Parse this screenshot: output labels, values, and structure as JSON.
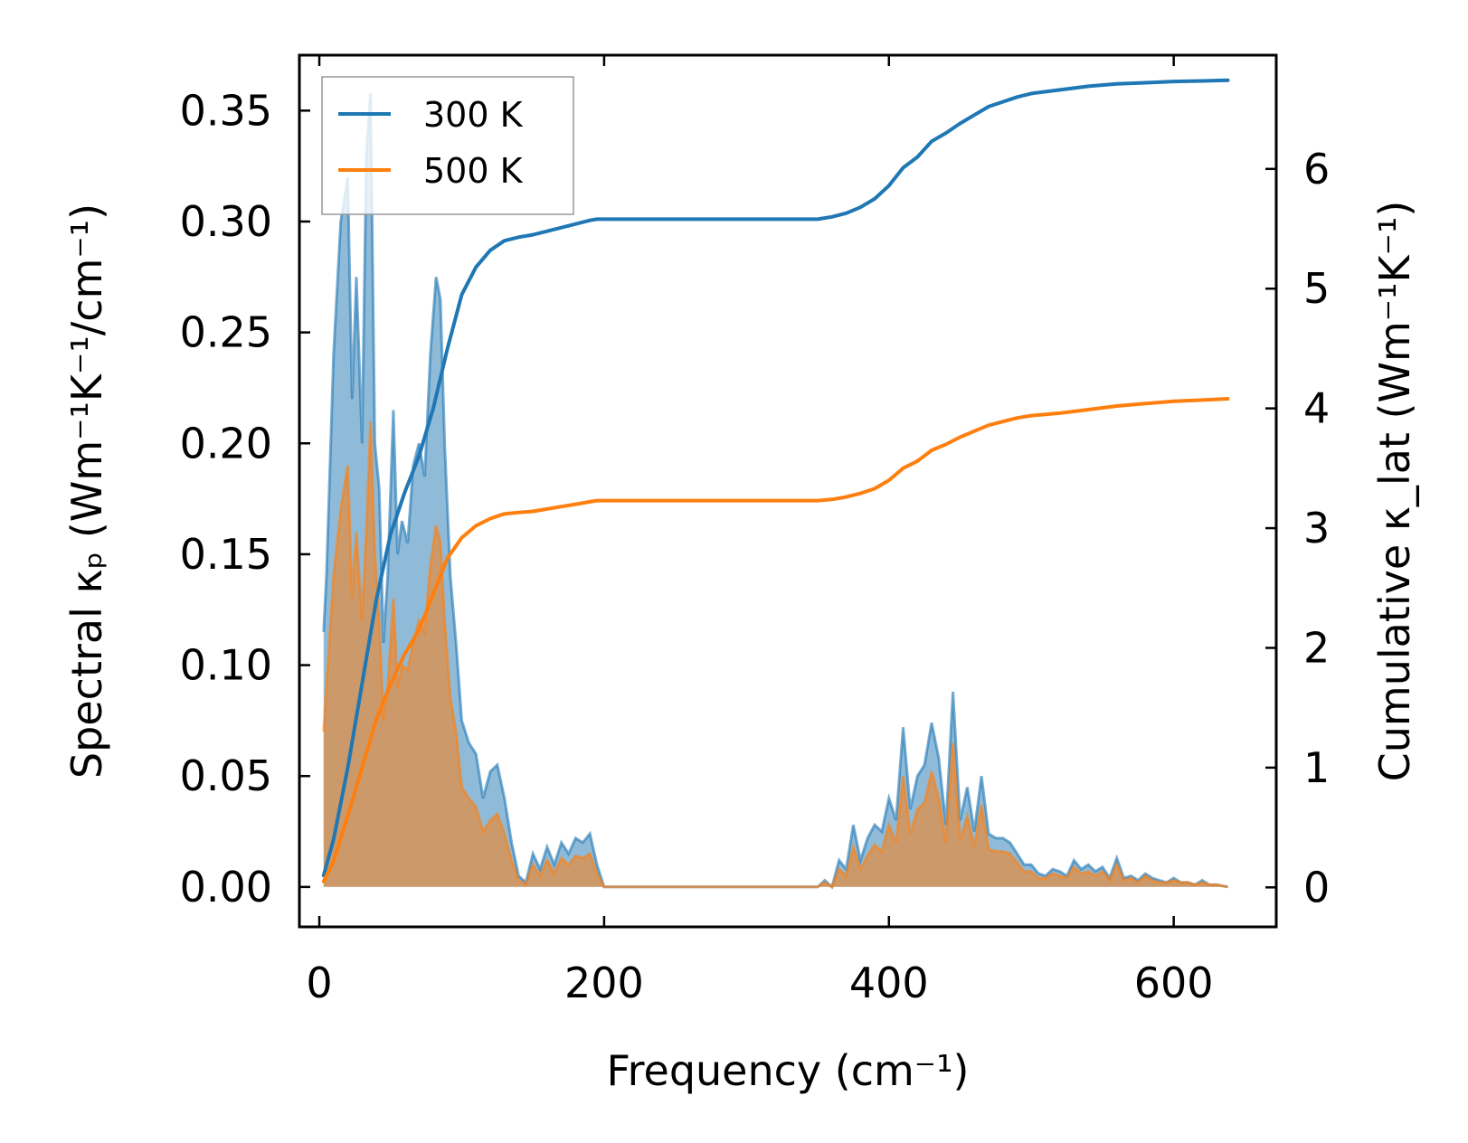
{
  "chart_data": {
    "type": "area",
    "xlabel": "Frequency (cm⁻¹)",
    "ylabel_left": "Spectral κₚ (Wm⁻¹K⁻¹/cm⁻¹)",
    "ylabel_right": "Cumulative κ_lat (Wm⁻¹K⁻¹)",
    "xlim": [
      -14,
      672
    ],
    "ylim_left": [
      -0.018,
      0.375
    ],
    "ylim_right": [
      -0.33,
      6.95
    ],
    "xticks": [
      0,
      200,
      400,
      600
    ],
    "yticks_left": [
      0.0,
      0.05,
      0.1,
      0.15,
      0.2,
      0.25,
      0.3,
      0.35
    ],
    "ytick_labels_left": [
      "0.00",
      "0.05",
      "0.10",
      "0.15",
      "0.20",
      "0.25",
      "0.30",
      "0.35"
    ],
    "yticks_right": [
      0,
      1,
      2,
      3,
      4,
      5,
      6
    ],
    "legend": {
      "location": "upper-left",
      "entries": [
        "300 K",
        "500 K"
      ]
    },
    "colors": {
      "300K": "#1f77b4",
      "500K": "#ff7f0e"
    },
    "series": [
      {
        "name": "300 K",
        "spectral": {
          "x": [
            3,
            5,
            10,
            15,
            20,
            23,
            26,
            30,
            33,
            36,
            39,
            42,
            45,
            48,
            52,
            55,
            58,
            62,
            66,
            70,
            74,
            78,
            82,
            85,
            88,
            92,
            96,
            100,
            105,
            110,
            115,
            120,
            125,
            130,
            135,
            140,
            145,
            150,
            155,
            160,
            165,
            170,
            175,
            180,
            185,
            190,
            195,
            200,
            250,
            300,
            350,
            355,
            360,
            365,
            370,
            375,
            380,
            385,
            390,
            395,
            400,
            405,
            410,
            415,
            420,
            425,
            430,
            435,
            440,
            445,
            450,
            455,
            460,
            465,
            470,
            475,
            480,
            485,
            490,
            495,
            500,
            505,
            510,
            515,
            520,
            525,
            530,
            535,
            540,
            545,
            550,
            555,
            560,
            565,
            570,
            575,
            580,
            585,
            590,
            595,
            600,
            605,
            610,
            615,
            620,
            625,
            630,
            638
          ],
          "y": [
            0.115,
            0.14,
            0.24,
            0.3,
            0.32,
            0.22,
            0.275,
            0.2,
            0.33,
            0.358,
            0.2,
            0.18,
            0.11,
            0.14,
            0.215,
            0.15,
            0.165,
            0.155,
            0.19,
            0.2,
            0.185,
            0.24,
            0.275,
            0.265,
            0.2,
            0.14,
            0.11,
            0.075,
            0.065,
            0.06,
            0.04,
            0.052,
            0.055,
            0.04,
            0.02,
            0.005,
            0.002,
            0.015,
            0.008,
            0.018,
            0.01,
            0.02,
            0.015,
            0.022,
            0.02,
            0.024,
            0.01,
            0.0,
            0.0,
            0.0,
            0.0,
            0.003,
            0.0,
            0.012,
            0.008,
            0.028,
            0.012,
            0.022,
            0.028,
            0.025,
            0.04,
            0.03,
            0.072,
            0.035,
            0.05,
            0.055,
            0.074,
            0.058,
            0.028,
            0.088,
            0.03,
            0.045,
            0.025,
            0.05,
            0.024,
            0.022,
            0.022,
            0.02,
            0.015,
            0.01,
            0.01,
            0.006,
            0.005,
            0.008,
            0.007,
            0.005,
            0.012,
            0.008,
            0.01,
            0.007,
            0.009,
            0.004,
            0.013,
            0.004,
            0.005,
            0.003,
            0.006,
            0.004,
            0.003,
            0.002,
            0.004,
            0.002,
            0.002,
            0.001,
            0.003,
            0.001,
            0.001,
            0.0
          ]
        },
        "cumulative": {
          "x": [
            3,
            10,
            20,
            30,
            40,
            50,
            60,
            70,
            80,
            90,
            100,
            110,
            120,
            130,
            140,
            150,
            160,
            170,
            180,
            190,
            195,
            200,
            300,
            350,
            360,
            370,
            380,
            390,
            400,
            410,
            420,
            430,
            440,
            450,
            460,
            470,
            480,
            490,
            500,
            520,
            540,
            560,
            580,
            600,
            620,
            638
          ],
          "y": [
            0.1,
            0.4,
            1.0,
            1.7,
            2.4,
            2.95,
            3.3,
            3.6,
            4.0,
            4.5,
            4.95,
            5.18,
            5.32,
            5.4,
            5.43,
            5.45,
            5.48,
            5.51,
            5.54,
            5.57,
            5.58,
            5.58,
            5.58,
            5.58,
            5.6,
            5.63,
            5.68,
            5.75,
            5.86,
            6.01,
            6.1,
            6.23,
            6.3,
            6.38,
            6.45,
            6.52,
            6.56,
            6.6,
            6.63,
            6.66,
            6.69,
            6.71,
            6.72,
            6.73,
            6.735,
            6.74
          ]
        }
      },
      {
        "name": "500 K",
        "spectral": {
          "x": [
            3,
            5,
            10,
            15,
            20,
            23,
            26,
            30,
            33,
            36,
            39,
            42,
            45,
            48,
            52,
            55,
            58,
            62,
            66,
            70,
            74,
            78,
            82,
            85,
            88,
            92,
            96,
            100,
            105,
            110,
            115,
            120,
            125,
            130,
            135,
            140,
            145,
            150,
            155,
            160,
            165,
            170,
            175,
            180,
            185,
            190,
            195,
            200,
            250,
            300,
            350,
            355,
            360,
            365,
            370,
            375,
            380,
            385,
            390,
            395,
            400,
            405,
            410,
            415,
            420,
            425,
            430,
            435,
            440,
            445,
            450,
            455,
            460,
            465,
            470,
            475,
            480,
            485,
            490,
            495,
            500,
            505,
            510,
            515,
            520,
            525,
            530,
            535,
            540,
            545,
            550,
            555,
            560,
            565,
            570,
            575,
            580,
            585,
            590,
            595,
            600,
            605,
            610,
            615,
            620,
            625,
            630,
            638
          ],
          "y": [
            0.07,
            0.09,
            0.14,
            0.17,
            0.19,
            0.13,
            0.16,
            0.12,
            0.16,
            0.21,
            0.15,
            0.12,
            0.075,
            0.09,
            0.13,
            0.09,
            0.1,
            0.098,
            0.11,
            0.12,
            0.115,
            0.145,
            0.163,
            0.155,
            0.12,
            0.085,
            0.07,
            0.045,
            0.04,
            0.036,
            0.025,
            0.03,
            0.033,
            0.024,
            0.012,
            0.003,
            0.001,
            0.01,
            0.005,
            0.012,
            0.006,
            0.013,
            0.01,
            0.014,
            0.013,
            0.015,
            0.006,
            0.0,
            0.0,
            0.0,
            0.0,
            0.002,
            0.0,
            0.008,
            0.005,
            0.018,
            0.008,
            0.014,
            0.019,
            0.016,
            0.028,
            0.02,
            0.05,
            0.024,
            0.035,
            0.038,
            0.052,
            0.04,
            0.02,
            0.065,
            0.021,
            0.032,
            0.018,
            0.037,
            0.017,
            0.016,
            0.016,
            0.015,
            0.011,
            0.007,
            0.007,
            0.004,
            0.004,
            0.006,
            0.005,
            0.004,
            0.009,
            0.006,
            0.007,
            0.005,
            0.007,
            0.003,
            0.01,
            0.003,
            0.004,
            0.002,
            0.005,
            0.003,
            0.002,
            0.002,
            0.003,
            0.002,
            0.002,
            0.001,
            0.002,
            0.001,
            0.001,
            0.0
          ]
        },
        "cumulative": {
          "x": [
            3,
            10,
            20,
            30,
            40,
            50,
            60,
            70,
            80,
            90,
            100,
            110,
            120,
            130,
            140,
            150,
            160,
            170,
            180,
            190,
            195,
            200,
            300,
            350,
            360,
            370,
            380,
            390,
            400,
            410,
            420,
            430,
            440,
            450,
            460,
            470,
            480,
            490,
            500,
            520,
            540,
            560,
            580,
            600,
            620,
            638
          ],
          "y": [
            0.05,
            0.22,
            0.6,
            1.0,
            1.4,
            1.7,
            1.95,
            2.15,
            2.45,
            2.75,
            2.92,
            3.02,
            3.08,
            3.12,
            3.13,
            3.14,
            3.16,
            3.18,
            3.2,
            3.22,
            3.23,
            3.23,
            3.23,
            3.23,
            3.24,
            3.26,
            3.29,
            3.33,
            3.4,
            3.5,
            3.56,
            3.65,
            3.7,
            3.76,
            3.81,
            3.86,
            3.89,
            3.92,
            3.94,
            3.96,
            3.99,
            4.02,
            4.04,
            4.06,
            4.07,
            4.08
          ]
        }
      }
    ]
  }
}
